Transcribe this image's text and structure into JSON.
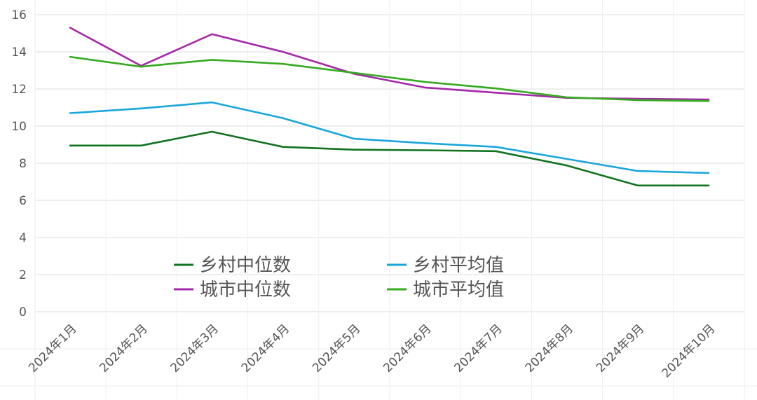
{
  "chart_data": {
    "type": "line",
    "title": "",
    "xlabel": "",
    "ylabel": "",
    "ylim": [
      0,
      16
    ],
    "yticks": [
      0,
      2,
      4,
      6,
      8,
      10,
      12,
      14,
      16
    ],
    "grid": true,
    "legend_position": "center-bottom",
    "categories": [
      "2024年1月",
      "2024年2月",
      "2024年3月",
      "2024年4月",
      "2024年5月",
      "2024年6月",
      "2024年7月",
      "2024年8月",
      "2024年9月",
      "2024年10月"
    ],
    "series": [
      {
        "name": "乡村中位数",
        "color": "#11731f",
        "values": [
          8.95,
          8.95,
          9.7,
          8.88,
          8.73,
          8.7,
          8.65,
          7.88,
          6.8,
          6.8
        ]
      },
      {
        "name": "乡村平均值",
        "color": "#19a6da",
        "values": [
          10.7,
          10.95,
          11.28,
          10.43,
          9.32,
          9.08,
          8.88,
          8.23,
          7.58,
          7.47
        ]
      },
      {
        "name": "城市中位数",
        "color": "#a329a8",
        "values": [
          15.3,
          13.25,
          14.95,
          14.0,
          12.82,
          12.08,
          11.8,
          11.52,
          11.47,
          11.43
        ]
      },
      {
        "name": "城市平均值",
        "color": "#36ab20",
        "values": [
          13.73,
          13.2,
          13.57,
          13.35,
          12.87,
          12.38,
          12.03,
          11.55,
          11.4,
          11.35
        ]
      }
    ]
  }
}
